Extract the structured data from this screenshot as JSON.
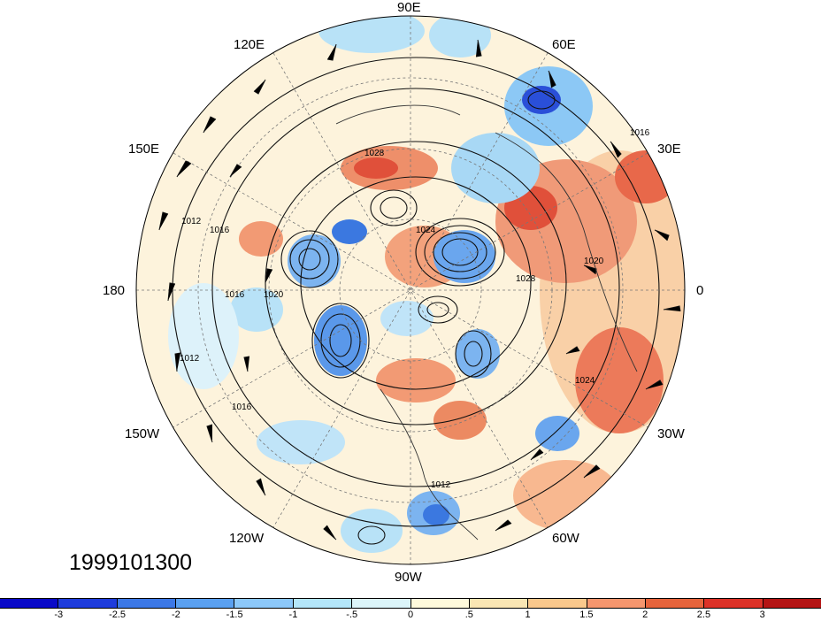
{
  "map": {
    "projection": "north-polar-stereographic",
    "longitude_labels": {
      "lon_90E": "90E",
      "lon_60E": "60E",
      "lon_120E": "120E",
      "lon_30E": "30E",
      "lon_150E": "150E",
      "lon_180": "180",
      "lon_0": "0",
      "lon_150W": "150W",
      "lon_30W": "30W",
      "lon_120W": "120W",
      "lon_60W": "60W",
      "lon_90W": "90W"
    },
    "date_stamp": "1999101300",
    "contour_labels": [
      "1028",
      "1024",
      "1020",
      "1016",
      "1012",
      "1016",
      "1020",
      "1028",
      "1024",
      "1016",
      "1012",
      "1016",
      "1012"
    ],
    "overlays": [
      "shaded anomaly field",
      "pressure contours",
      "wind barbs",
      "coastlines"
    ]
  },
  "colorbar": {
    "colors": [
      "#0a0ac8",
      "#1e3cdc",
      "#3c78e6",
      "#5aa0f0",
      "#8cc8fa",
      "#b4e6fa",
      "#dcf5fa",
      "#fffadc",
      "#fae6b4",
      "#fac88c",
      "#f5966e",
      "#e6643c",
      "#dc3228",
      "#b41414"
    ],
    "labels": [
      "-3",
      "-2.5",
      "-2",
      "-1.5",
      "-1",
      "-.5",
      "0",
      ".5",
      "1",
      "1.5",
      "2",
      "2.5",
      "3"
    ]
  }
}
